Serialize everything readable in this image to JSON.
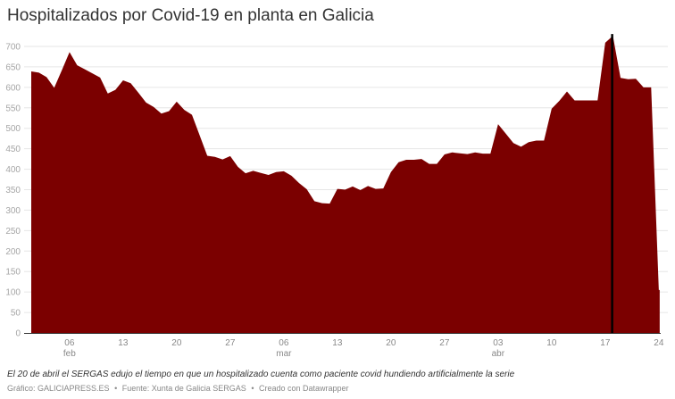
{
  "header": {
    "title": "Hospitalizados por Covid-19 en planta en Galicia"
  },
  "chart_data": {
    "type": "area",
    "title": "Hospitalizados por Covid-19 en planta en Galicia",
    "xlabel": "",
    "ylabel": "",
    "ylim": [
      0,
      700
    ],
    "grid": true,
    "fill_color": "#7b0000",
    "marker_color": "#000000",
    "y_ticks": [
      0,
      50,
      100,
      150,
      200,
      250,
      300,
      350,
      400,
      450,
      500,
      550,
      600,
      650,
      700
    ],
    "x_ticks": [
      {
        "label": "06",
        "sub": "feb",
        "index": 5
      },
      {
        "label": "13",
        "sub": "",
        "index": 12
      },
      {
        "label": "20",
        "sub": "",
        "index": 19
      },
      {
        "label": "27",
        "sub": "",
        "index": 26
      },
      {
        "label": "06",
        "sub": "mar",
        "index": 33
      },
      {
        "label": "13",
        "sub": "",
        "index": 40
      },
      {
        "label": "20",
        "sub": "",
        "index": 47
      },
      {
        "label": "27",
        "sub": "",
        "index": 54
      },
      {
        "label": "03",
        "sub": "abr",
        "index": 61
      },
      {
        "label": "10",
        "sub": "",
        "index": 68
      },
      {
        "label": "17",
        "sub": "",
        "index": 75
      },
      {
        "label": "24",
        "sub": "",
        "index": 82
      }
    ],
    "x_start": "01 feb",
    "x_end": "24 abr",
    "marker_line_index": 76,
    "values": [
      639,
      636,
      625,
      599,
      642,
      686,
      654,
      644,
      634,
      624,
      585,
      594,
      617,
      610,
      587,
      563,
      552,
      536,
      542,
      565,
      545,
      533,
      483,
      433,
      430,
      424,
      432,
      406,
      390,
      396,
      391,
      386,
      393,
      395,
      384,
      366,
      351,
      322,
      317,
      316,
      352,
      350,
      358,
      349,
      359,
      352,
      353,
      393,
      417,
      423,
      423,
      425,
      413,
      413,
      436,
      441,
      439,
      437,
      441,
      438,
      438,
      510,
      487,
      464,
      455,
      466,
      470,
      470,
      548,
      567,
      590,
      568,
      568,
      568,
      568,
      709,
      726,
      623,
      620,
      621,
      600,
      600,
      105
    ]
  },
  "notes": "El 20 de abril el SERGAS edujo el tiempo en que un hospitalizado cuenta como paciente covid hundiendo artificialmente la serie",
  "footer": {
    "credit": "Gráfico: GALICIAPRESS.ES",
    "separator": "•",
    "source": "Fuente: Xunta de Galicia SERGAS",
    "made_with": "Creado con Datawrapper"
  }
}
